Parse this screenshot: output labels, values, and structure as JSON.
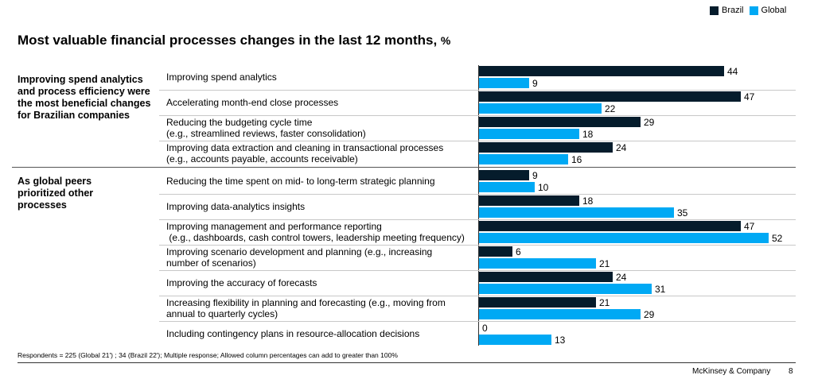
{
  "legend": [
    {
      "name": "Brazil",
      "color": "#051c2c"
    },
    {
      "name": "Global",
      "color": "#00a9f4"
    }
  ],
  "title": {
    "text": "Most valuable financial processes changes in the last 12 months,",
    "unit": "%"
  },
  "groups": [
    {
      "label": "Improving spend analytics and process efficiency were the most beneficial changes for Brazilian companies"
    },
    {
      "label": "As global peers prioritized other processes"
    }
  ],
  "chart_data": {
    "type": "bar",
    "orientation": "horizontal",
    "title": "Most valuable financial processes changes in the last 12 months, %",
    "categories": [
      [
        "Improving spend analytics"
      ],
      [
        "Accelerating month-end close processes"
      ],
      [
        "Reducing the budgeting cycle time",
        "(e.g., streamlined reviews, faster consolidation)"
      ],
      [
        "Improving data extraction and cleaning in transactional processes",
        "(e.g., accounts payable, accounts receivable)"
      ],
      [
        "Reducing the time spent on mid- to long-term strategic planning"
      ],
      [
        "Improving data-analytics insights"
      ],
      [
        "Improving management and performance reporting",
        " (e.g., dashboards, cash control towers, leadership meeting frequency)"
      ],
      [
        "Improving scenario development and planning (e.g., increasing",
        "number of scenarios)"
      ],
      [
        "Improving the accuracy of forecasts"
      ],
      [
        "Increasing flexibility in planning and forecasting (e.g., moving from",
        "annual to quarterly cycles)"
      ],
      [
        "Including contingency plans in resource-allocation decisions"
      ]
    ],
    "series": [
      {
        "name": "Brazil",
        "values": [
          44,
          47,
          29,
          24,
          9,
          18,
          47,
          6,
          24,
          21,
          0
        ]
      },
      {
        "name": "Global",
        "values": [
          9,
          22,
          18,
          16,
          10,
          35,
          52,
          21,
          31,
          29,
          13
        ]
      }
    ],
    "xlim": [
      0,
      52
    ]
  },
  "footnote": "Respondents = 225 (Global 21') ; 34 (Brazil 22'); Multiple response; Allowed column percentages can add  to greater than 100%",
  "company": "McKinsey & Company",
  "page_number": "8"
}
